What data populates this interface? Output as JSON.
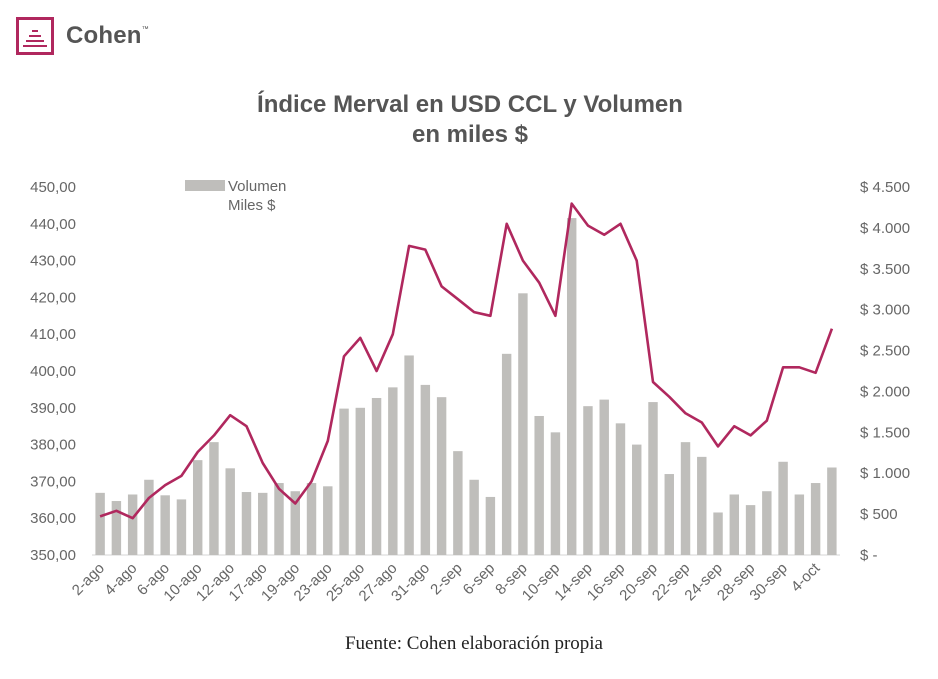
{
  "brand": {
    "name": "Cohen",
    "tm": "™",
    "accent": "#b0285e"
  },
  "header": {
    "title_line1": "Índice Merval en USD CCL y Volumen",
    "title_line2": "en miles $"
  },
  "legend": {
    "volume_line1": "Volumen",
    "volume_line2": "Miles $"
  },
  "footer": {
    "source": "Fuente: Cohen elaboración propia"
  },
  "chart_data": {
    "type": "bar+line",
    "title": "Índice Merval en USD CCL y Volumen en miles $",
    "categories": [
      "2-ago",
      "3-ago",
      "4-ago",
      "5-ago",
      "6-ago",
      "9-ago",
      "10-ago",
      "11-ago",
      "12-ago",
      "13-ago",
      "17-ago",
      "18-ago",
      "19-ago",
      "20-ago",
      "23-ago",
      "24-ago",
      "25-ago",
      "26-ago",
      "27-ago",
      "30-ago",
      "31-ago",
      "1-sep",
      "2-sep",
      "3-sep",
      "6-sep",
      "7-sep",
      "8-sep",
      "9-sep",
      "10-sep",
      "13-sep",
      "14-sep",
      "15-sep",
      "16-sep",
      "17-sep",
      "20-sep",
      "21-sep",
      "22-sep",
      "23-sep",
      "24-sep",
      "27-sep",
      "28-sep",
      "29-sep",
      "30-sep",
      "1-oct",
      "4-oct",
      "5-oct"
    ],
    "x_tick_labels": [
      "2-ago",
      "4-ago",
      "6-ago",
      "10-ago",
      "12-ago",
      "17-ago",
      "19-ago",
      "23-ago",
      "25-ago",
      "27-ago",
      "31-ago",
      "2-sep",
      "6-sep",
      "8-sep",
      "10-sep",
      "14-sep",
      "16-sep",
      "20-sep",
      "22-sep",
      "24-sep",
      "28-sep",
      "30-sep",
      "4-oct"
    ],
    "series": [
      {
        "name": "Volumen Miles $",
        "kind": "bar",
        "axis": "right",
        "color": "#bfbebb",
        "values": [
          760,
          660,
          740,
          920,
          730,
          680,
          1160,
          1380,
          1060,
          770,
          760,
          880,
          780,
          880,
          840,
          1790,
          1800,
          1920,
          2050,
          2440,
          2080,
          1930,
          1270,
          920,
          710,
          2460,
          3200,
          1700,
          1500,
          4120,
          1820,
          1900,
          1610,
          1350,
          1870,
          990,
          1380,
          1200,
          520,
          740,
          610,
          780,
          1140,
          740,
          880,
          1070
        ]
      },
      {
        "name": "Índice Merval en USD CCL",
        "kind": "line",
        "axis": "left",
        "color": "#b0285e",
        "values": [
          360.5,
          362,
          360,
          365.5,
          369,
          371.5,
          378,
          382.5,
          388,
          385,
          375,
          368,
          364,
          370,
          381,
          404,
          409,
          400,
          410,
          434,
          433,
          423,
          419.5,
          416,
          415,
          440,
          430,
          424,
          415,
          445.5,
          439.5,
          437,
          440,
          430,
          397,
          393,
          388.5,
          386,
          379.5,
          385,
          382.5,
          386.5,
          401,
          401,
          399.5,
          411.5
        ]
      }
    ],
    "y_left": {
      "min": 350,
      "max": 450,
      "ticks": [
        "350,00",
        "360,00",
        "370,00",
        "380,00",
        "390,00",
        "400,00",
        "410,00",
        "420,00",
        "430,00",
        "440,00",
        "450,00"
      ]
    },
    "y_right": {
      "min": 0,
      "max": 4500,
      "ticks": [
        "$ -",
        "$ 500",
        "$ 1.000",
        "$ 1.500",
        "$ 2.000",
        "$ 2.500",
        "$ 3.000",
        "$ 3.500",
        "$ 4.000",
        "$ 4.500"
      ]
    }
  }
}
